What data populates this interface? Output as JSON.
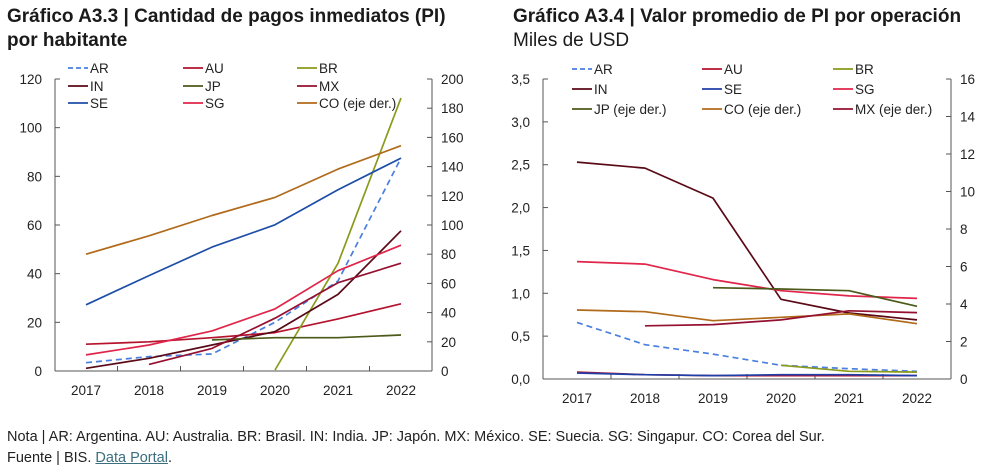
{
  "chart_data": [
    {
      "type": "line",
      "title": "Gráfico A3.3 | Cantidad de pagos inmediatos (PI) por habitante",
      "title_line1": "Gráfico A3.3 | Cantidad de pagos inmediatos (PI)",
      "title_line2": "por habitante",
      "categories": [
        "2017",
        "2018",
        "2019",
        "2020",
        "2021",
        "2022"
      ],
      "ylim": [
        0,
        120
      ],
      "yticks": [
        "0",
        "20",
        "40",
        "60",
        "80",
        "100",
        "120"
      ],
      "y2lim": [
        0,
        200
      ],
      "y2ticks": [
        "0",
        "20",
        "40",
        "60",
        "80",
        "100",
        "120",
        "140",
        "160",
        "180",
        "200"
      ],
      "grid": false,
      "legend": "top",
      "series": [
        {
          "name": "AR",
          "axis": "left",
          "dashed": true,
          "color": "#4a7fe0",
          "values": [
            3.4,
            5.9,
            7,
            20,
            37,
            87.5
          ]
        },
        {
          "name": "AU",
          "axis": "left",
          "color": "#b5122e",
          "values": [
            11,
            12,
            13.7,
            15.8,
            21.4,
            27.6
          ]
        },
        {
          "name": "BR",
          "axis": "right",
          "color": "#8a9a1a",
          "values": [
            null,
            null,
            null,
            0.7,
            73.8,
            187
          ]
        },
        {
          "name": "IN",
          "axis": "left",
          "color": "#5a0a16",
          "values": [
            1.1,
            5.2,
            10.7,
            16.2,
            31.5,
            57.6
          ]
        },
        {
          "name": "JP",
          "axis": "left",
          "color": "#4b5a1a",
          "values": [
            null,
            null,
            12.8,
            13.7,
            13.7,
            14.8
          ]
        },
        {
          "name": "MX",
          "axis": "left",
          "color": "#951030",
          "values": [
            null,
            2.7,
            9.3,
            21.7,
            36.3,
            44.3
          ]
        },
        {
          "name": "SE",
          "axis": "left",
          "color": "#1f4ea8",
          "values": [
            27.2,
            39.2,
            50.9,
            60.1,
            74.5,
            87.5
          ]
        },
        {
          "name": "SG",
          "axis": "left",
          "color": "#e0254a",
          "values": [
            6.6,
            10.7,
            16.5,
            25.5,
            41.2,
            51.7
          ]
        },
        {
          "name": "CO (eje der.)",
          "axis": "right",
          "color": "#b06a1a",
          "values": [
            80,
            92.6,
            106.5,
            118.9,
            138.3,
            154.3
          ]
        }
      ]
    },
    {
      "type": "line",
      "title": "Gráfico A3.4 | Valor promedio de PI por operación",
      "subtitle": "Miles de USD",
      "categories": [
        "2017",
        "2018",
        "2019",
        "2020",
        "2021",
        "2022"
      ],
      "ylim": [
        0,
        3.5
      ],
      "yticks": [
        "0,0",
        "0,5",
        "1,0",
        "1,5",
        "2,0",
        "2,5",
        "3,0",
        "3,5"
      ],
      "y2lim": [
        0,
        16
      ],
      "y2ticks": [
        "0",
        "2",
        "4",
        "6",
        "8",
        "10",
        "12",
        "14",
        "16"
      ],
      "grid": false,
      "legend": "top",
      "series": [
        {
          "name": "AR",
          "axis": "left",
          "dashed": true,
          "color": "#4a7fe0",
          "values": [
            0.66,
            0.4,
            0.29,
            0.16,
            0.12,
            0.09
          ]
        },
        {
          "name": "AU",
          "axis": "left",
          "color": "#b5122e",
          "values": [
            0.08,
            0.05,
            0.04,
            0.04,
            0.04,
            0.04
          ]
        },
        {
          "name": "BR",
          "axis": "left",
          "color": "#8a9a1a",
          "values": [
            null,
            null,
            null,
            0.16,
            0.09,
            0.08
          ]
        },
        {
          "name": "IN",
          "axis": "left",
          "color": "#5a0a16",
          "values": [
            2.53,
            2.46,
            2.11,
            0.93,
            0.77,
            0.69
          ]
        },
        {
          "name": "SE",
          "axis": "left",
          "color": "#1f3fa8",
          "values": [
            0.07,
            0.05,
            0.04,
            0.05,
            0.05,
            0.04
          ]
        },
        {
          "name": "SG",
          "axis": "left",
          "color": "#e0254a",
          "values": [
            1.37,
            1.34,
            1.16,
            1.03,
            0.97,
            0.94
          ]
        },
        {
          "name": "JP (eje der.)",
          "axis": "right",
          "color": "#4b5a1a",
          "values": [
            null,
            null,
            4.87,
            4.8,
            4.71,
            3.88
          ]
        },
        {
          "name": "CO (eje der.)",
          "axis": "right",
          "color": "#b06a1a",
          "values": [
            3.68,
            3.59,
            3.11,
            3.29,
            3.47,
            2.95
          ]
        },
        {
          "name": "MX (eje der.)",
          "axis": "right",
          "color": "#951030",
          "values": [
            null,
            2.84,
            2.9,
            3.15,
            3.64,
            3.54
          ]
        }
      ]
    }
  ],
  "footer": {
    "note": "Nota | AR: Argentina. AU: Australia. BR: Brasil. IN: India. JP: Japón. MX: México. SE: Suecia. SG: Singapur. CO: Corea del Sur.",
    "source_prefix": "Fuente | BIS. ",
    "source_link": "Data Portal",
    "source_suffix": "."
  }
}
